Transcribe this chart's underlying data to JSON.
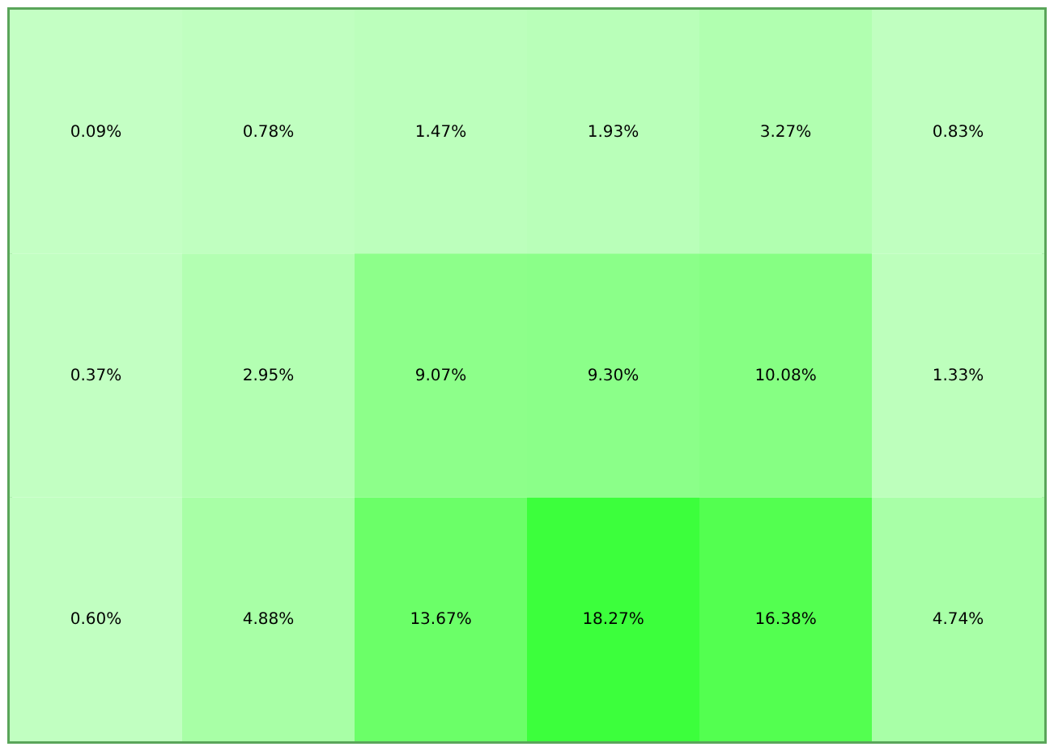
{
  "chart_data": {
    "type": "heatmap",
    "categories": [
      null,
      null,
      null,
      null,
      null,
      null
    ],
    "y_categories": [
      null,
      null,
      null
    ],
    "cells": [
      [
        0.09,
        0.78,
        1.47,
        1.93,
        3.27,
        0.83
      ],
      [
        0.37,
        2.95,
        9.07,
        9.3,
        10.08,
        1.33
      ],
      [
        0.6,
        4.88,
        13.67,
        18.27,
        16.38,
        4.74
      ]
    ],
    "cell_labels": [
      [
        "0.09%",
        "0.78%",
        "1.47%",
        "1.93%",
        "3.27%",
        "0.83%"
      ],
      [
        "0.37%",
        "2.95%",
        "9.07%",
        "9.30%",
        "10.08%",
        "1.33%"
      ],
      [
        "0.60%",
        "4.88%",
        "13.67%",
        "18.27%",
        "16.38%",
        "4.74%"
      ]
    ],
    "colors": [
      "#c4ffc4",
      "#3cff3c"
    ]
  }
}
